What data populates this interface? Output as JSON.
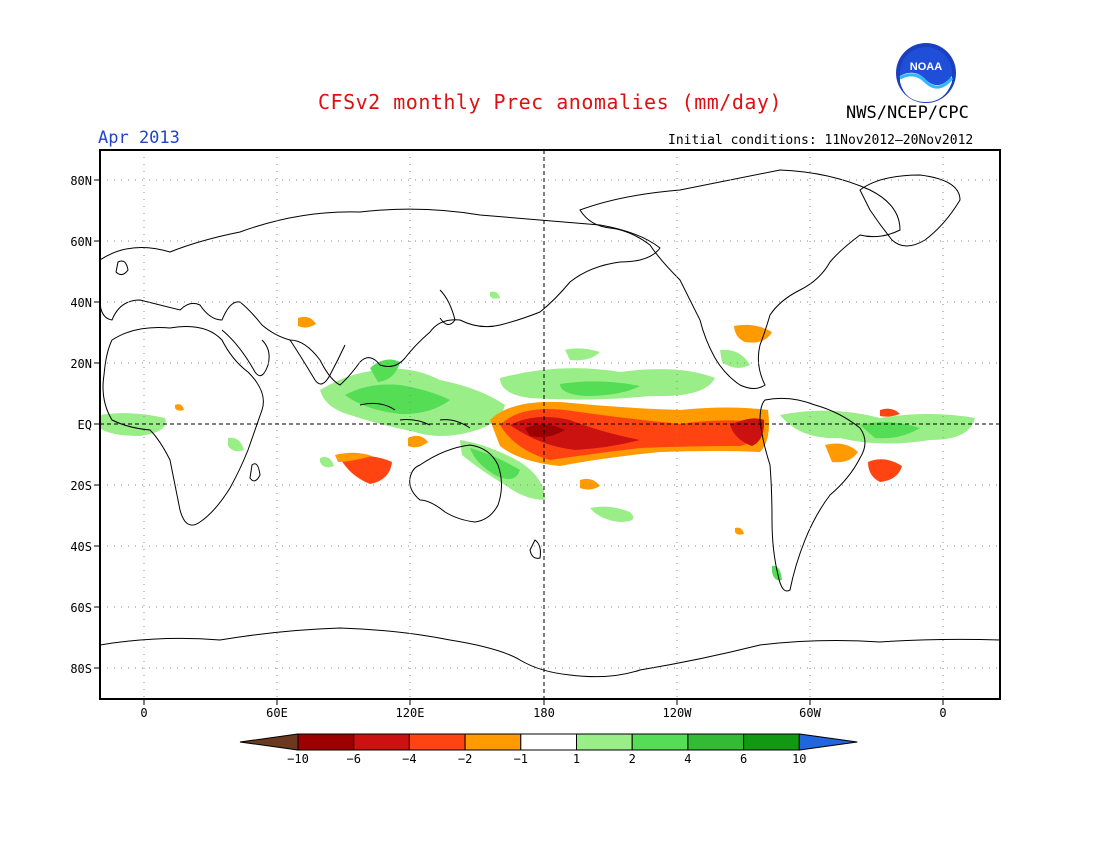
{
  "header": {
    "title": "CFSv2 monthly Prec anomalies (mm/day)",
    "valid_month": "Apr 2013",
    "agency": "NWS/NCEP/CPC",
    "initial_conditions": "Initial conditions: 11Nov2012–20Nov2012",
    "logo_text": "NOAA"
  },
  "map": {
    "lat_ticks": [
      "80N",
      "60N",
      "40N",
      "20N",
      "EQ",
      "20S",
      "40S",
      "60S",
      "80S"
    ],
    "lon_ticks": [
      "0",
      "60E",
      "120E",
      "180",
      "120W",
      "60W",
      "0"
    ]
  },
  "colorbar": {
    "labels": [
      "−10",
      "−6",
      "−4",
      "−2",
      "−1",
      "1",
      "2",
      "4",
      "6",
      "10"
    ],
    "colors": [
      "#6b3a1e",
      "#9c0000",
      "#cc1111",
      "#ff4411",
      "#ff9a00",
      "#ffffff",
      "#99ee88",
      "#55dd55",
      "#33bb33",
      "#119911",
      "#2266dd"
    ]
  },
  "colors": {
    "dry_extreme": "#6b3a1e",
    "dry_strong": "#cc1111",
    "dry_moderate": "#ff4411",
    "dry_light": "#ff9a00",
    "wet_light": "#99ee88",
    "wet_moderate": "#55dd55",
    "wet_strong": "#33bb33",
    "wet_extreme": "#2266dd"
  }
}
